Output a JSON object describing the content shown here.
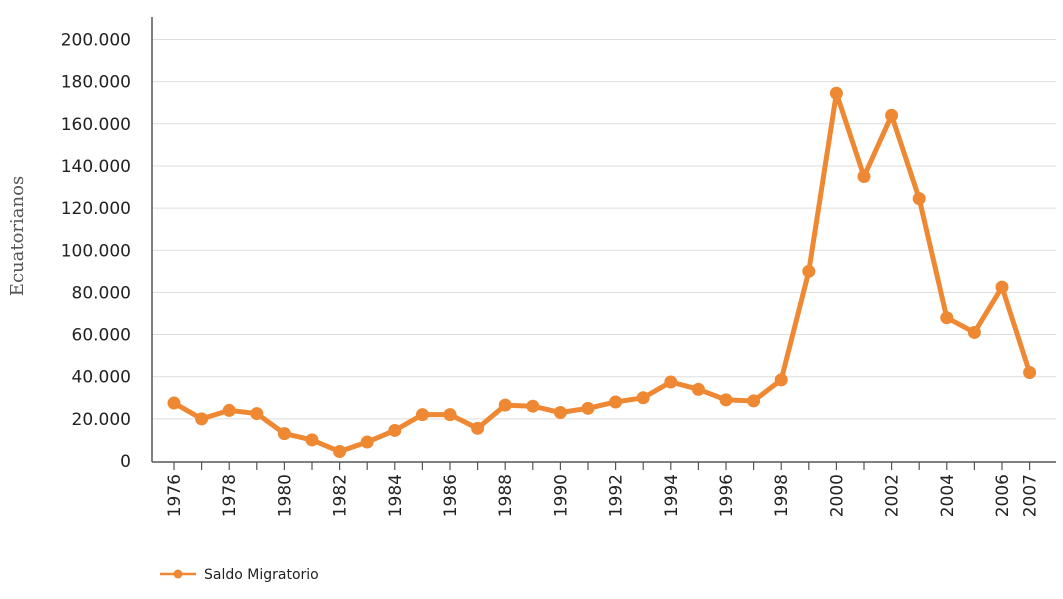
{
  "chart_data": {
    "type": "line",
    "title": "",
    "xlabel": "",
    "ylabel": "Ecuatorianos",
    "ylim": [
      0,
      200000
    ],
    "yticks": [
      0,
      20000,
      40000,
      60000,
      80000,
      100000,
      120000,
      140000,
      160000,
      180000,
      200000
    ],
    "ytick_labels": [
      "0",
      "20.000",
      "40.000",
      "60.000",
      "80.000",
      "100.000",
      "120.000",
      "140.000",
      "160.000",
      "180.000",
      "200.000"
    ],
    "x": [
      1976,
      1977,
      1978,
      1979,
      1980,
      1981,
      1982,
      1983,
      1984,
      1985,
      1986,
      1987,
      1988,
      1989,
      1990,
      1991,
      1992,
      1993,
      1994,
      1995,
      1996,
      1997,
      1998,
      1999,
      2000,
      2001,
      2002,
      2003,
      2004,
      2005,
      2006,
      2007
    ],
    "xtick_labels": [
      "1976",
      "1978",
      "1980",
      "1982",
      "1984",
      "1986",
      "1988",
      "1990",
      "1992",
      "1994",
      "1996",
      "1998",
      "2000",
      "2002",
      "2004",
      "2006",
      "2007"
    ],
    "xtick_values": [
      1976,
      1978,
      1980,
      1982,
      1984,
      1986,
      1988,
      1990,
      1992,
      1994,
      1996,
      1998,
      2000,
      2002,
      2004,
      2006,
      2007
    ],
    "grid": true,
    "legend_position": "bottom-left",
    "series": [
      {
        "name": "Saldo Migratorio",
        "color": "#EE8833",
        "values": [
          27500,
          20000,
          24000,
          22500,
          13000,
          10000,
          4500,
          9000,
          14500,
          22000,
          22000,
          15500,
          26500,
          26000,
          23000,
          25000,
          28000,
          30000,
          37500,
          34000,
          29000,
          28500,
          38500,
          90000,
          174500,
          135000,
          164000,
          124500,
          68000,
          61000,
          82500,
          42000
        ]
      }
    ]
  }
}
